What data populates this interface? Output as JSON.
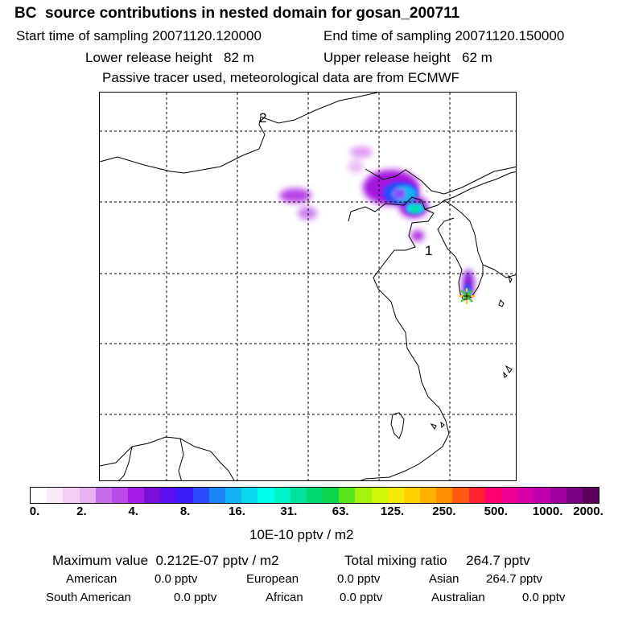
{
  "header": {
    "title": "BC  source contributions in nested domain for gosan_200711",
    "start_label": "Start time of sampling 20071120.120000",
    "end_label": "End time of sampling 20071120.150000",
    "lower_label": "Lower release height   82 m",
    "upper_label": "Upper release height   62 m",
    "tracer_note": "Passive tracer used, meteorological data are from ECMWF"
  },
  "map": {
    "label_1": "1",
    "label_2": "2"
  },
  "colorbar": {
    "colors": [
      "#ffffff",
      "#fbe9fb",
      "#f4cff4",
      "#eab2f0",
      "#c66ee9",
      "#b94ae6",
      "#a61ce5",
      "#7a10d8",
      "#5b0ff0",
      "#3a1cfb",
      "#2a4cfd",
      "#1a84f8",
      "#13b0f2",
      "#0bd6f0",
      "#00ffea",
      "#00f2c8",
      "#00e39e",
      "#02d874",
      "#0ad54c",
      "#55e61f",
      "#a6f310",
      "#d0f60a",
      "#f4ea05",
      "#ffd200",
      "#ffb300",
      "#ff8e00",
      "#ff5a10",
      "#ff2030",
      "#ff0070",
      "#ee0090",
      "#d800a8",
      "#c000b0",
      "#a2009e",
      "#7c0082",
      "#5a0058"
    ],
    "ticks": [
      "0.",
      "2.",
      "4.",
      "8.",
      "16.",
      "31.",
      "63.",
      "125.",
      "250.",
      "500.",
      "1000.",
      "2000."
    ],
    "unit": "10E-10 pptv / m2"
  },
  "stats": {
    "max_label": "Maximum value  0.212E-07 pptv / m2",
    "total_label": "Total mixing ratio     264.7 pptv",
    "american_name": "American",
    "american_value": "0.0 pptv",
    "european_name": "European",
    "european_value": "0.0 pptv",
    "asian_name": "Asian",
    "asian_value": "264.7 pptv",
    "south_american_name": "South American",
    "south_american_value": "0.0 pptv",
    "african_name": "African",
    "african_value": "0.0 pptv",
    "australian_name": "Australian",
    "australian_value": "0.0 pptv"
  }
}
